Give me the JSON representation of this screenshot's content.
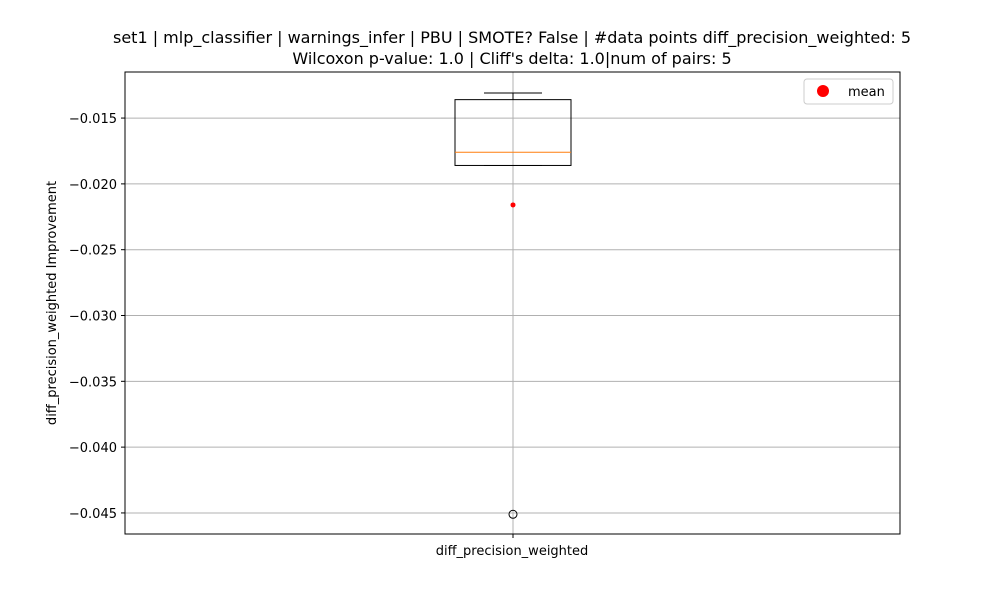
{
  "chart_data": {
    "type": "box",
    "title": "set1 | mlp_classifier | warnings_infer | PBU | SMOTE? False | #data points diff_precision_weighted: 5",
    "subtitle": "Wilcoxon p-value: 1.0 | Cliff's delta: 1.0|num of pairs: 5",
    "xlabel": "diff_precision_weighted",
    "ylabel": "diff_precision_weighted Improvement",
    "ylim": [
      -0.0466,
      -0.0115
    ],
    "y_ticks": [
      -0.015,
      -0.02,
      -0.025,
      -0.03,
      -0.035,
      -0.04,
      -0.045
    ],
    "y_tick_labels": [
      "−0.015",
      "−0.020",
      "−0.025",
      "−0.030",
      "−0.035",
      "−0.040",
      "−0.045"
    ],
    "grid": true,
    "legend": {
      "placement": "top-right",
      "entries": [
        {
          "label": "mean",
          "color": "#ff0000",
          "marker": "circle"
        }
      ]
    },
    "boxes": [
      {
        "category": "diff_precision_weighted",
        "whisker_high": -0.0131,
        "q3": -0.0136,
        "median": -0.0176,
        "q1": -0.0186,
        "whisker_low": -0.0186,
        "mean": -0.0216,
        "outliers": [
          -0.0451
        ]
      }
    ],
    "colors": {
      "box": "#000000",
      "median": "#ff7f0e",
      "mean": "#ff0000",
      "grid": "#b0b0b0",
      "outlier": "#000000"
    }
  }
}
